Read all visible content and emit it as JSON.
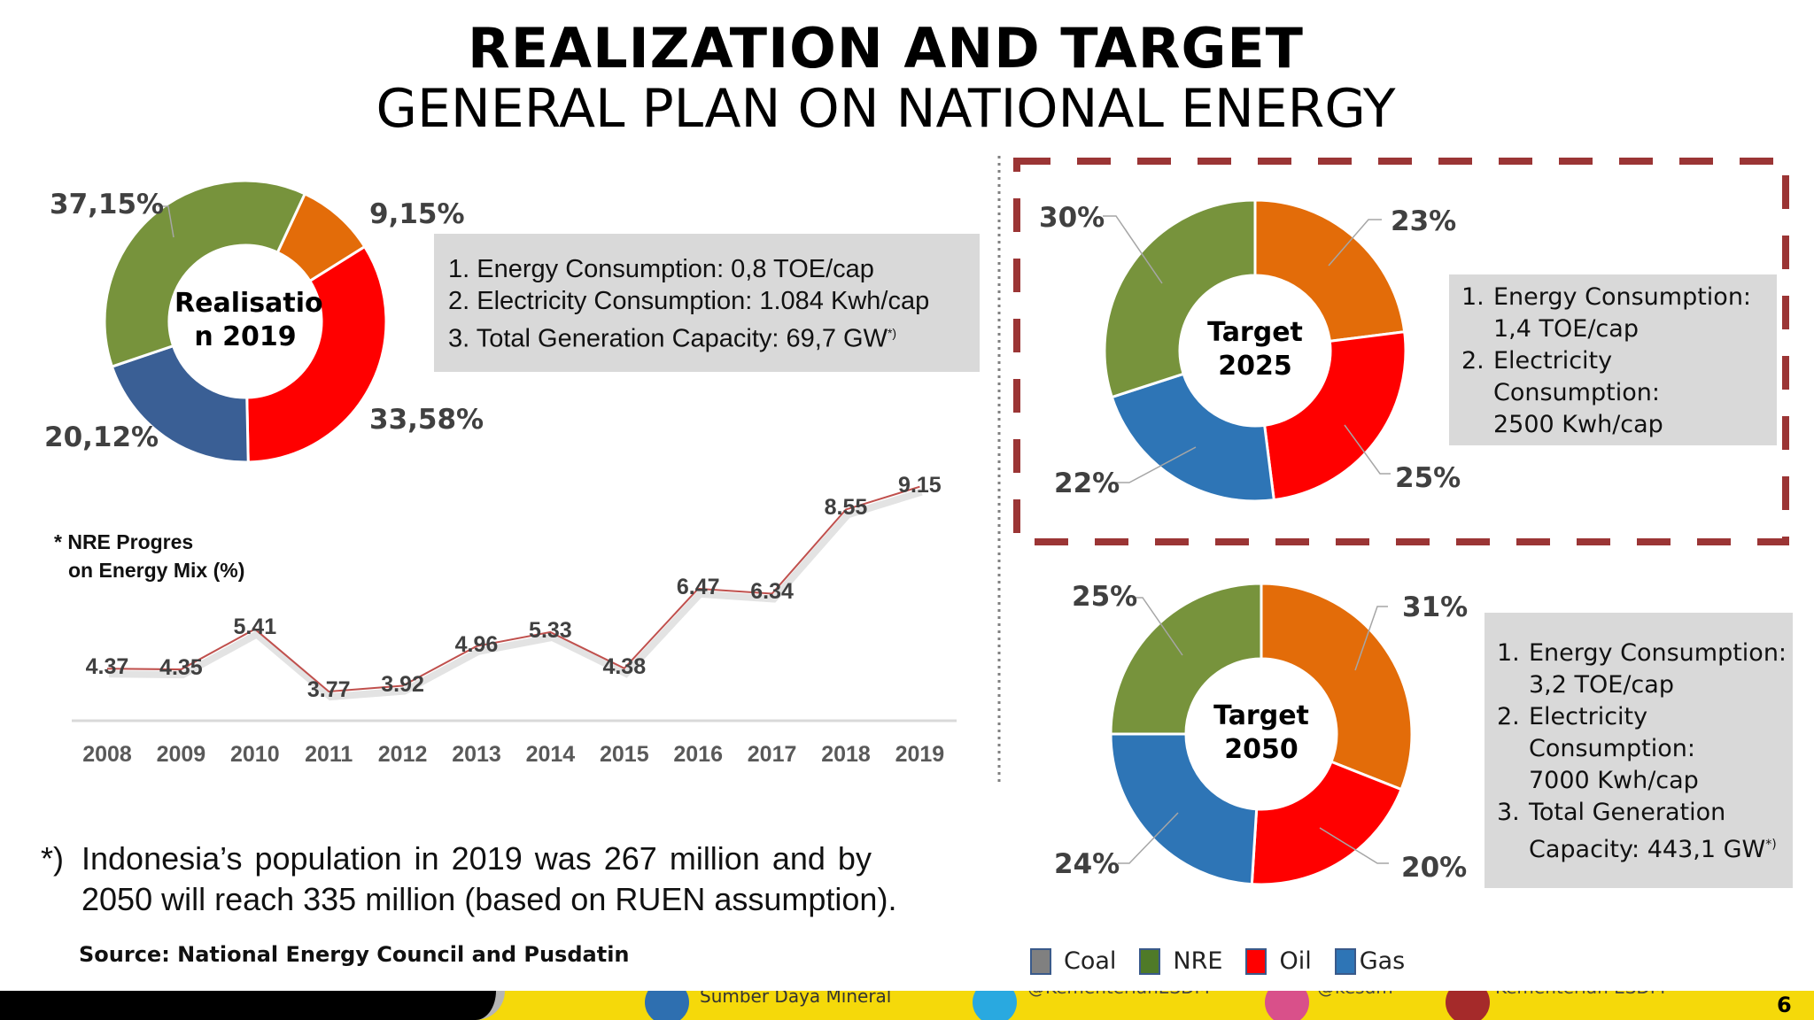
{
  "title": {
    "line1": "REALIZATION AND TARGET",
    "line2": "GENERAL PLAN ON NATIONAL ENERGY"
  },
  "colors": {
    "orange": "#e36c09",
    "red": "#ff0000",
    "blue_2019": "#3a5f95",
    "blue": "#2e75b6",
    "green": "#77933c",
    "coal": "#808080",
    "dashed_box": "#9b3535",
    "footer_yellow": "#f5d90a"
  },
  "realisation_2019": {
    "center_label": "Realisation 2019",
    "center_line1": "Realisatio",
    "center_line2": "n 2019",
    "slices": [
      {
        "label": "9,15%",
        "value": 9.15,
        "color": "#e36c09"
      },
      {
        "label": "33,58%",
        "value": 33.58,
        "color": "#ff0000"
      },
      {
        "label": "20,12%",
        "value": 20.12,
        "color": "#3a5f95"
      },
      {
        "label": "37,15%",
        "value": 37.15,
        "color": "#77933c"
      }
    ],
    "info": [
      "Energy Consumption: 0,8 TOE/cap",
      "Electricity Consumption: 1.084 Kwh/cap",
      "Total Generation Capacity: 69,7 GW"
    ],
    "info_sup": "*)"
  },
  "target_2025": {
    "center_line1": "Target",
    "center_line2": "2025",
    "slices": [
      {
        "label": "23%",
        "value": 23,
        "color": "#e36c09"
      },
      {
        "label": "25%",
        "value": 25,
        "color": "#ff0000"
      },
      {
        "label": "22%",
        "value": 22,
        "color": "#2e75b6"
      },
      {
        "label": "30%",
        "value": 30,
        "color": "#77933c"
      }
    ],
    "info": [
      {
        "line1": "Energy Consumption:",
        "line2": "1,4 TOE/cap"
      },
      {
        "line1": "Electricity",
        "line2": "Consumption:",
        "line3": "2500 Kwh/cap"
      }
    ]
  },
  "target_2050": {
    "center_line1": "Target",
    "center_line2": "2050",
    "slices": [
      {
        "label": "31%",
        "value": 31,
        "color": "#e36c09"
      },
      {
        "label": "20%",
        "value": 20,
        "color": "#ff0000"
      },
      {
        "label": "24%",
        "value": 24,
        "color": "#2e75b6"
      },
      {
        "label": "25%",
        "value": 25,
        "color": "#77933c"
      }
    ],
    "info": [
      {
        "line1": "Energy Consumption:",
        "line2": "3,2 TOE/cap"
      },
      {
        "line1": "Electricity",
        "line2": "Consumption:",
        "line3": "7000 Kwh/cap"
      },
      {
        "line1": "Total Generation",
        "line2": "Capacity: 443,1 GW",
        "sup": "*)"
      }
    ]
  },
  "chart_data": {
    "type": "line",
    "title": "* NRE Progres on Energy Mix (%)",
    "title_line1": "* NRE Progres",
    "title_line2": "on Energy Mix (%)",
    "categories": [
      "2008",
      "2009",
      "2010",
      "2011",
      "2012",
      "2013",
      "2014",
      "2015",
      "2016",
      "2017",
      "2018",
      "2019"
    ],
    "values": [
      4.37,
      4.35,
      5.41,
      3.77,
      3.92,
      4.96,
      5.33,
      4.38,
      6.47,
      6.34,
      8.55,
      9.15
    ],
    "labels": [
      "4.37",
      "4.35",
      "5.41",
      "3.77",
      "3.92",
      "4.96",
      "5.33",
      "4.38",
      "6.47",
      "6.34",
      "8.55",
      "9.15"
    ],
    "line_color": "#c0504d",
    "grid": false
  },
  "footnote": {
    "marker": "*)",
    "line1": "Indonesia’s population in 2019 was 267 million and by",
    "line2": "2050 will reach 335 million (based on RUEN assumption)."
  },
  "source": "Source: National Energy Council and Pusdatin",
  "legend": [
    {
      "label": "Coal",
      "color": "#808080"
    },
    {
      "label": "NRE",
      "color": "#4f7a28"
    },
    {
      "label": "Oil",
      "color": "#ff0000"
    },
    {
      "label": "Gas",
      "color": "#2e75b6"
    }
  ],
  "footer": {
    "facebook": "Sumber Daya Mineral",
    "twitter": "@KementerianESDM",
    "instagram": "@kesdm",
    "youtube": "Kementerian ESDM",
    "page_number": "6"
  }
}
